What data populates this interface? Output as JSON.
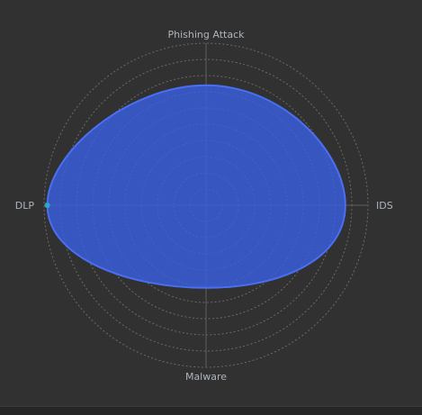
{
  "chart_data": {
    "type": "radar",
    "title": "",
    "axes": [
      "Phishing Attack",
      "IDS",
      "Malware",
      "DLP"
    ],
    "series": [
      {
        "values": [
          74,
          86,
          51,
          98
        ],
        "color": "#3a5fe0"
      }
    ],
    "range": [
      0,
      100
    ],
    "grid": true,
    "grid_style": "dotted-circles",
    "legend": "none"
  },
  "colors": {
    "background": "#313131",
    "grid": "#6a6a6a",
    "axis_line": "#5e5e5e",
    "fill": "#3a5fe0",
    "stroke": "#4a6ff2",
    "marker": "#2fa8c8",
    "label": "#aeb4bb"
  }
}
